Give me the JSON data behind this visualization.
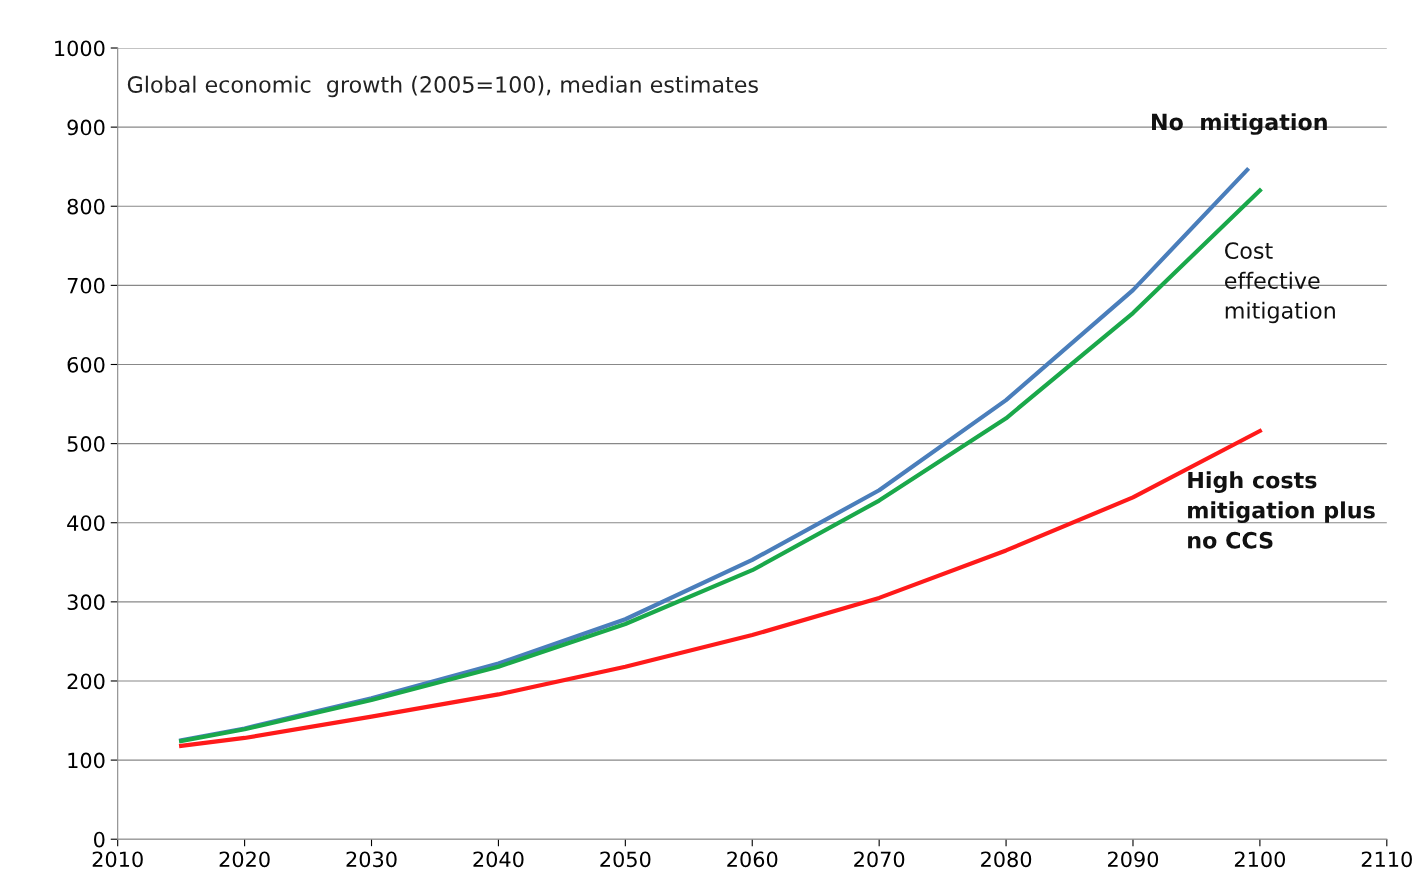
{
  "chart_data": {
    "type": "line",
    "annotations": [
      "Global economic  growth (2005=100), median estimates"
    ],
    "series": [
      {
        "name": "No  mitigation",
        "color": "#4a7ebb",
        "x": [
          2015,
          2020,
          2030,
          2040,
          2050,
          2060,
          2070,
          2080,
          2090,
          2099
        ],
        "values": [
          125,
          140,
          178,
          222,
          278,
          353,
          441,
          555,
          694,
          846
        ]
      },
      {
        "name": "Cost\neffective\nmitigation",
        "color": "#1aa84a",
        "x": [
          2015,
          2020,
          2030,
          2040,
          2050,
          2060,
          2070,
          2080,
          2090,
          2100
        ],
        "values": [
          124,
          139,
          176,
          218,
          272,
          340,
          428,
          532,
          665,
          820
        ]
      },
      {
        "name": "High costs\nmitigation plus\nno CCS",
        "color": "#ff1a1a",
        "x": [
          2015,
          2020,
          2030,
          2040,
          2050,
          2060,
          2070,
          2080,
          2090,
          2100
        ],
        "values": [
          118,
          128,
          155,
          183,
          218,
          258,
          305,
          365,
          432,
          516
        ]
      }
    ],
    "xlim": [
      2010,
      2110
    ],
    "xticks": [
      2010,
      2020,
      2030,
      2040,
      2050,
      2060,
      2070,
      2080,
      2090,
      2100,
      2110
    ],
    "ylim": [
      0,
      1000
    ],
    "yticks": [
      0,
      100,
      200,
      300,
      400,
      500,
      600,
      700,
      800,
      900,
      1000
    ],
    "grid": "y",
    "legend": false,
    "marker": "none",
    "line_style": "solid"
  }
}
